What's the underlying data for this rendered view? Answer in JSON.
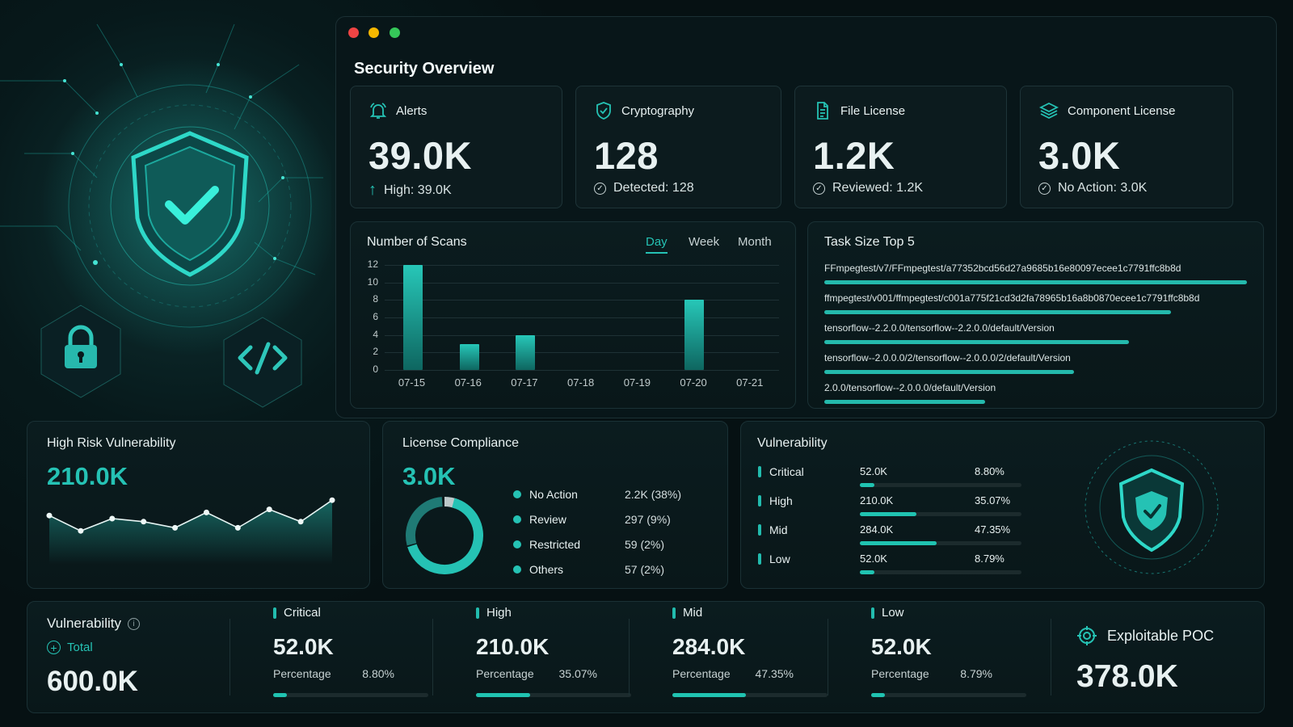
{
  "window": {
    "title": "Security Overview"
  },
  "summary_cards": [
    {
      "label": "Alerts",
      "value": "39.0K",
      "detail": "High: 39.0K"
    },
    {
      "label": "Cryptography",
      "value": "128",
      "detail": "Detected: 128"
    },
    {
      "label": "File License",
      "value": "1.2K",
      "detail": "Reviewed: 1.2K"
    },
    {
      "label": "Component License",
      "value": "3.0K",
      "detail": "No Action: 3.0K"
    }
  ],
  "scans": {
    "title": "Number of Scans",
    "tabs": [
      "Day",
      "Week",
      "Month"
    ],
    "active_tab": "Day"
  },
  "chart_data": [
    {
      "type": "bar",
      "title": "Number of Scans",
      "categories": [
        "07-15",
        "07-16",
        "07-17",
        "07-18",
        "07-19",
        "07-20",
        "07-21"
      ],
      "values": [
        12,
        3,
        4,
        0,
        0,
        8,
        0
      ],
      "y_ticks": [
        "0",
        "2",
        "4",
        "6",
        "8",
        "10",
        "12"
      ],
      "ylim": [
        0,
        12
      ],
      "grid": true
    },
    {
      "type": "line",
      "title": "High Risk Vulnerability",
      "values": [
        1.6,
        1.1,
        1.5,
        1.4,
        1.2,
        1.7,
        1.2,
        1.8,
        1.4,
        2.1
      ],
      "ylim": [
        0,
        2.5
      ],
      "grid": false
    }
  ],
  "task_size": {
    "title": "Task Size Top 5",
    "items": [
      {
        "label": "FFmpegtest/v7/FFmpegtest/a77352bcd56d27a9685b16e80097ecee1c7791ffc8b8d",
        "size": 1.0
      },
      {
        "label": "ffmpegtest/v001/ffmpegtest/c001a775f21cd3d2fa78965b16a8b0870ecee1c7791ffc8b8d",
        "size": 0.82
      },
      {
        "label": "tensorflow--2.2.0.0/tensorflow--2.2.0.0/default/Version",
        "size": 0.72
      },
      {
        "label": "tensorflow--2.0.0.0/2/tensorflow--2.0.0.0/2/default/Version",
        "size": 0.59
      },
      {
        "label": "2.0.0/tensorflow--2.0.0.0/default/Version",
        "size": 0.38
      }
    ]
  },
  "high_risk": {
    "title": "High Risk Vulnerability",
    "value": "210.0K"
  },
  "license": {
    "title": "License Compliance",
    "value": "3.0K",
    "items": [
      {
        "label": "No Action",
        "value": "2.2K (38%)"
      },
      {
        "label": "Review",
        "value": "297 (9%)"
      },
      {
        "label": "Restricted",
        "value": "59 (2%)"
      },
      {
        "label": "Others",
        "value": "57 (2%)"
      }
    ]
  },
  "vulnerability_panel": {
    "title": "Vulnerability",
    "items": [
      {
        "label": "Critical",
        "count": "52.0K",
        "percent": "8.80%",
        "ratio": 0.088
      },
      {
        "label": "High",
        "count": "210.0K",
        "percent": "35.07%",
        "ratio": 0.3507
      },
      {
        "label": "Mid",
        "count": "284.0K",
        "percent": "47.35%",
        "ratio": 0.4735
      },
      {
        "label": "Low",
        "count": "52.0K",
        "percent": "8.79%",
        "ratio": 0.0879
      }
    ]
  },
  "bottom": {
    "title": "Vulnerability",
    "total_label": "Total",
    "total_value": "600.0K",
    "metrics": [
      {
        "label": "Critical",
        "value": "52.0K",
        "percent_label": "Percentage",
        "percent": "8.80%",
        "ratio": 0.088
      },
      {
        "label": "High",
        "value": "210.0K",
        "percent_label": "Percentage",
        "percent": "35.07%",
        "ratio": 0.3507
      },
      {
        "label": "Mid",
        "value": "284.0K",
        "percent_label": "Percentage",
        "percent": "47.35%",
        "ratio": 0.4735
      },
      {
        "label": "Low",
        "value": "52.0K",
        "percent_label": "Percentage",
        "percent": "8.79%",
        "ratio": 0.0879
      }
    ],
    "poc_label": "Exploitable POC",
    "poc_value": "378.0K"
  },
  "colors": {
    "accent": "#25c2b4",
    "background": "#061113",
    "panel": "#0b1c1f",
    "traffic_red": "#ef4444",
    "traffic_yellow": "#f5b700",
    "traffic_green": "#35c759"
  }
}
